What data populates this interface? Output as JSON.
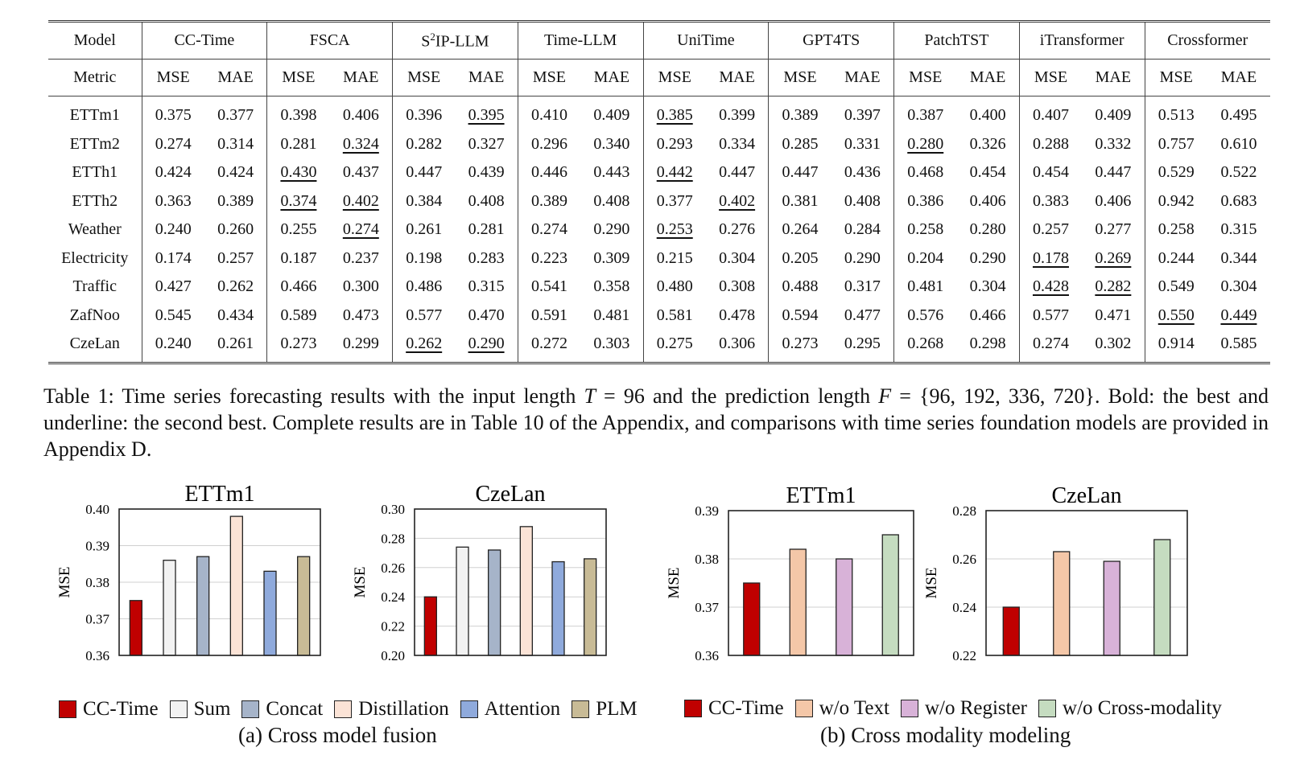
{
  "table": {
    "model_label": "Model",
    "metric_label": "Metric",
    "mse": "MSE",
    "mae": "MAE",
    "models": [
      {
        "pre": "CC-Time",
        "sup": "",
        "post": ""
      },
      {
        "pre": "FSCA",
        "sup": "",
        "post": ""
      },
      {
        "pre": "S",
        "sup": "2",
        "post": "IP-LLM"
      },
      {
        "pre": "Time-LLM",
        "sup": "",
        "post": ""
      },
      {
        "pre": "UniTime",
        "sup": "",
        "post": ""
      },
      {
        "pre": "GPT4TS",
        "sup": "",
        "post": ""
      },
      {
        "pre": "PatchTST",
        "sup": "",
        "post": ""
      },
      {
        "pre": "iTransformer",
        "sup": "",
        "post": ""
      },
      {
        "pre": "Crossformer",
        "sup": "",
        "post": ""
      }
    ],
    "rows": [
      {
        "name": "ETTm1",
        "cells": [
          [
            "0.375",
            "b"
          ],
          [
            "0.377",
            "b"
          ],
          [
            "0.398",
            ""
          ],
          [
            "0.406",
            ""
          ],
          [
            "0.396",
            ""
          ],
          [
            "0.395",
            "u"
          ],
          [
            "0.410",
            ""
          ],
          [
            "0.409",
            ""
          ],
          [
            "0.385",
            "u"
          ],
          [
            "0.399",
            ""
          ],
          [
            "0.389",
            ""
          ],
          [
            "0.397",
            ""
          ],
          [
            "0.387",
            ""
          ],
          [
            "0.400",
            ""
          ],
          [
            "0.407",
            ""
          ],
          [
            "0.409",
            ""
          ],
          [
            "0.513",
            ""
          ],
          [
            "0.495",
            ""
          ]
        ]
      },
      {
        "name": "ETTm2",
        "cells": [
          [
            "0.274",
            "b"
          ],
          [
            "0.314",
            "b"
          ],
          [
            "0.281",
            ""
          ],
          [
            "0.324",
            "u"
          ],
          [
            "0.282",
            ""
          ],
          [
            "0.327",
            ""
          ],
          [
            "0.296",
            ""
          ],
          [
            "0.340",
            ""
          ],
          [
            "0.293",
            ""
          ],
          [
            "0.334",
            ""
          ],
          [
            "0.285",
            ""
          ],
          [
            "0.331",
            ""
          ],
          [
            "0.280",
            "u"
          ],
          [
            "0.326",
            ""
          ],
          [
            "0.288",
            ""
          ],
          [
            "0.332",
            ""
          ],
          [
            "0.757",
            ""
          ],
          [
            "0.610",
            ""
          ]
        ]
      },
      {
        "name": "ETTh1",
        "cells": [
          [
            "0.424",
            "b"
          ],
          [
            "0.424",
            "b"
          ],
          [
            "0.430",
            "u"
          ],
          [
            "0.437",
            ""
          ],
          [
            "0.447",
            ""
          ],
          [
            "0.439",
            ""
          ],
          [
            "0.446",
            ""
          ],
          [
            "0.443",
            ""
          ],
          [
            "0.442",
            "u"
          ],
          [
            "0.447",
            ""
          ],
          [
            "0.447",
            ""
          ],
          [
            "0.436",
            ""
          ],
          [
            "0.468",
            ""
          ],
          [
            "0.454",
            ""
          ],
          [
            "0.454",
            ""
          ],
          [
            "0.447",
            ""
          ],
          [
            "0.529",
            ""
          ],
          [
            "0.522",
            ""
          ]
        ]
      },
      {
        "name": "ETTh2",
        "cells": [
          [
            "0.363",
            "b"
          ],
          [
            "0.389",
            "b"
          ],
          [
            "0.374",
            "u"
          ],
          [
            "0.402",
            "u"
          ],
          [
            "0.384",
            ""
          ],
          [
            "0.408",
            ""
          ],
          [
            "0.389",
            ""
          ],
          [
            "0.408",
            ""
          ],
          [
            "0.377",
            ""
          ],
          [
            "0.402",
            "u"
          ],
          [
            "0.381",
            ""
          ],
          [
            "0.408",
            ""
          ],
          [
            "0.386",
            ""
          ],
          [
            "0.406",
            ""
          ],
          [
            "0.383",
            ""
          ],
          [
            "0.406",
            ""
          ],
          [
            "0.942",
            ""
          ],
          [
            "0.683",
            ""
          ]
        ]
      },
      {
        "name": "Weather",
        "cells": [
          [
            "0.240",
            "b"
          ],
          [
            "0.260",
            "b"
          ],
          [
            "0.255",
            ""
          ],
          [
            "0.274",
            "u"
          ],
          [
            "0.261",
            ""
          ],
          [
            "0.281",
            ""
          ],
          [
            "0.274",
            ""
          ],
          [
            "0.290",
            ""
          ],
          [
            "0.253",
            "u"
          ],
          [
            "0.276",
            ""
          ],
          [
            "0.264",
            ""
          ],
          [
            "0.284",
            ""
          ],
          [
            "0.258",
            ""
          ],
          [
            "0.280",
            ""
          ],
          [
            "0.257",
            ""
          ],
          [
            "0.277",
            ""
          ],
          [
            "0.258",
            ""
          ],
          [
            "0.315",
            ""
          ]
        ]
      },
      {
        "name": "Electricity",
        "cells": [
          [
            "0.174",
            "b"
          ],
          [
            "0.257",
            "b"
          ],
          [
            "0.187",
            ""
          ],
          [
            "0.237",
            ""
          ],
          [
            "0.198",
            ""
          ],
          [
            "0.283",
            ""
          ],
          [
            "0.223",
            ""
          ],
          [
            "0.309",
            ""
          ],
          [
            "0.215",
            ""
          ],
          [
            "0.304",
            ""
          ],
          [
            "0.205",
            ""
          ],
          [
            "0.290",
            ""
          ],
          [
            "0.204",
            ""
          ],
          [
            "0.290",
            ""
          ],
          [
            "0.178",
            "u"
          ],
          [
            "0.269",
            "u"
          ],
          [
            "0.244",
            ""
          ],
          [
            "0.344",
            ""
          ]
        ]
      },
      {
        "name": "Traffic",
        "cells": [
          [
            "0.427",
            "b"
          ],
          [
            "0.262",
            "b"
          ],
          [
            "0.466",
            ""
          ],
          [
            "0.300",
            ""
          ],
          [
            "0.486",
            ""
          ],
          [
            "0.315",
            ""
          ],
          [
            "0.541",
            ""
          ],
          [
            "0.358",
            ""
          ],
          [
            "0.480",
            ""
          ],
          [
            "0.308",
            ""
          ],
          [
            "0.488",
            ""
          ],
          [
            "0.317",
            ""
          ],
          [
            "0.481",
            ""
          ],
          [
            "0.304",
            ""
          ],
          [
            "0.428",
            "u"
          ],
          [
            "0.282",
            "u"
          ],
          [
            "0.549",
            ""
          ],
          [
            "0.304",
            ""
          ]
        ]
      },
      {
        "name": "ZafNoo",
        "cells": [
          [
            "0.545",
            "b"
          ],
          [
            "0.434",
            "b"
          ],
          [
            "0.589",
            ""
          ],
          [
            "0.473",
            ""
          ],
          [
            "0.577",
            ""
          ],
          [
            "0.470",
            ""
          ],
          [
            "0.591",
            ""
          ],
          [
            "0.481",
            ""
          ],
          [
            "0.581",
            ""
          ],
          [
            "0.478",
            ""
          ],
          [
            "0.594",
            ""
          ],
          [
            "0.477",
            ""
          ],
          [
            "0.576",
            ""
          ],
          [
            "0.466",
            ""
          ],
          [
            "0.577",
            ""
          ],
          [
            "0.471",
            ""
          ],
          [
            "0.550",
            "u"
          ],
          [
            "0.449",
            "u"
          ]
        ]
      },
      {
        "name": "CzeLan",
        "cells": [
          [
            "0.240",
            "b"
          ],
          [
            "0.261",
            "b"
          ],
          [
            "0.273",
            ""
          ],
          [
            "0.299",
            ""
          ],
          [
            "0.262",
            "u"
          ],
          [
            "0.290",
            "u"
          ],
          [
            "0.272",
            ""
          ],
          [
            "0.303",
            ""
          ],
          [
            "0.275",
            ""
          ],
          [
            "0.306",
            ""
          ],
          [
            "0.273",
            ""
          ],
          [
            "0.295",
            ""
          ],
          [
            "0.268",
            ""
          ],
          [
            "0.298",
            ""
          ],
          [
            "0.274",
            ""
          ],
          [
            "0.302",
            ""
          ],
          [
            "0.914",
            ""
          ],
          [
            "0.585",
            ""
          ]
        ]
      }
    ]
  },
  "caption": {
    "p1": "Table 1: Time series forecasting results with the input length ",
    "m1": "T",
    "p2": " = 96 and the prediction length ",
    "m2": "F",
    "p3": " = {96, 192, 336, 720}. Bold: the best and underline: the second best. Complete results are in Table 10 of the Appendix, and comparisons with time series foundation models are provided in Appendix D."
  },
  "chart_data": [
    {
      "type": "bar",
      "title": "ETTm1",
      "ylabel": "MSE",
      "ylim": [
        0.36,
        0.4
      ],
      "ticks": [
        "0.36",
        "0.37",
        "0.38",
        "0.39",
        "0.40"
      ],
      "tick_values": [
        0.36,
        0.37,
        0.38,
        0.39,
        0.4
      ],
      "categories": [
        "CC-Time",
        "Sum",
        "Concat",
        "Distillation",
        "Attention",
        "PLM"
      ],
      "values": [
        0.375,
        0.386,
        0.387,
        0.398,
        0.383,
        0.387
      ],
      "colors": [
        "#c00000",
        "#f2f2f2",
        "#a6b4c9",
        "#fbe3d6",
        "#8faadc",
        "#c8bb96"
      ]
    },
    {
      "type": "bar",
      "title": "CzeLan",
      "ylabel": "MSE",
      "ylim": [
        0.2,
        0.3
      ],
      "ticks": [
        "0.20",
        "0.22",
        "0.24",
        "0.26",
        "0.28",
        "0.30"
      ],
      "tick_values": [
        0.2,
        0.22,
        0.24,
        0.26,
        0.28,
        0.3
      ],
      "categories": [
        "CC-Time",
        "Sum",
        "Concat",
        "Distillation",
        "Attention",
        "PLM"
      ],
      "values": [
        0.24,
        0.274,
        0.272,
        0.288,
        0.264,
        0.266
      ],
      "colors": [
        "#c00000",
        "#f2f2f2",
        "#a6b4c9",
        "#fbe3d6",
        "#8faadc",
        "#c8bb96"
      ]
    },
    {
      "type": "bar",
      "title": "ETTm1",
      "ylabel": "MSE",
      "ylim": [
        0.36,
        0.39
      ],
      "ticks": [
        "0.36",
        "0.37",
        "0.38",
        "0.39"
      ],
      "tick_values": [
        0.36,
        0.37,
        0.38,
        0.39
      ],
      "categories": [
        "CC-Time",
        "w/o Text",
        "w/o Register",
        "w/o Cross-modality"
      ],
      "values": [
        0.375,
        0.382,
        0.38,
        0.385
      ],
      "colors": [
        "#c00000",
        "#f4c7a8",
        "#d8b2d8",
        "#c5dcc0"
      ]
    },
    {
      "type": "bar",
      "title": "CzeLan",
      "ylabel": "MSE",
      "ylim": [
        0.22,
        0.28
      ],
      "ticks": [
        "0.22",
        "0.24",
        "0.26",
        "0.28"
      ],
      "tick_values": [
        0.22,
        0.24,
        0.26,
        0.28
      ],
      "categories": [
        "CC-Time",
        "w/o Text",
        "w/o Register",
        "w/o Cross-modality"
      ],
      "values": [
        0.24,
        0.263,
        0.259,
        0.268
      ],
      "colors": [
        "#c00000",
        "#f4c7a8",
        "#d8b2d8",
        "#c5dcc0"
      ]
    }
  ],
  "legends": {
    "a": [
      {
        "label": "CC-Time",
        "color": "#c00000"
      },
      {
        "label": "Sum",
        "color": "#f2f2f2"
      },
      {
        "label": "Concat",
        "color": "#a6b4c9"
      },
      {
        "label": "Distillation",
        "color": "#fbe3d6"
      },
      {
        "label": "Attention",
        "color": "#8faadc"
      },
      {
        "label": "PLM",
        "color": "#c8bb96"
      }
    ],
    "b": [
      {
        "label": "CC-Time",
        "color": "#c00000"
      },
      {
        "label": "w/o Text",
        "color": "#f4c7a8"
      },
      {
        "label": "w/o Register",
        "color": "#d8b2d8"
      },
      {
        "label": "w/o Cross-modality",
        "color": "#c5dcc0"
      }
    ]
  },
  "subcaptions": {
    "a": "(a) Cross model fusion",
    "b": "(b) Cross modality modeling"
  }
}
